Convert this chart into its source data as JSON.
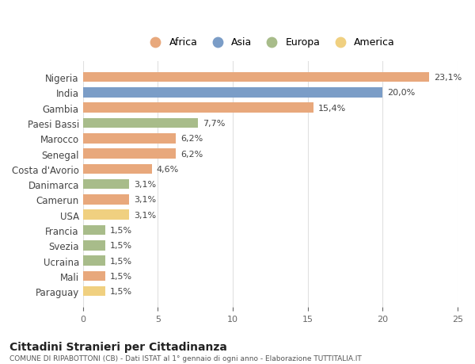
{
  "countries": [
    "Nigeria",
    "India",
    "Gambia",
    "Paesi Bassi",
    "Marocco",
    "Senegal",
    "Costa d'Avorio",
    "Danimarca",
    "Camerun",
    "USA",
    "Francia",
    "Svezia",
    "Ucraina",
    "Mali",
    "Paraguay"
  ],
  "values": [
    23.1,
    20.0,
    15.4,
    7.7,
    6.2,
    6.2,
    4.6,
    3.1,
    3.1,
    3.1,
    1.5,
    1.5,
    1.5,
    1.5,
    1.5
  ],
  "labels": [
    "23,1%",
    "20,0%",
    "15,4%",
    "7,7%",
    "6,2%",
    "6,2%",
    "4,6%",
    "3,1%",
    "3,1%",
    "3,1%",
    "1,5%",
    "1,5%",
    "1,5%",
    "1,5%",
    "1,5%"
  ],
  "continents": [
    "Africa",
    "Asia",
    "Africa",
    "Europa",
    "Africa",
    "Africa",
    "Africa",
    "Europa",
    "Africa",
    "America",
    "Europa",
    "Europa",
    "Europa",
    "Africa",
    "America"
  ],
  "colors": {
    "Africa": "#E8A87C",
    "Asia": "#7B9DC7",
    "Europa": "#A8BC8A",
    "America": "#F0D080"
  },
  "legend_order": [
    "Africa",
    "Asia",
    "Europa",
    "America"
  ],
  "title": "Cittadini Stranieri per Cittadinanza",
  "subtitle": "COMUNE DI RIPABOTTONI (CB) - Dati ISTAT al 1° gennaio di ogni anno - Elaborazione TUTTITALIA.IT",
  "xlim": [
    0,
    25
  ],
  "xticks": [
    0,
    5,
    10,
    15,
    20,
    25
  ],
  "bg_color": "#ffffff",
  "grid_color": "#e0e0e0"
}
